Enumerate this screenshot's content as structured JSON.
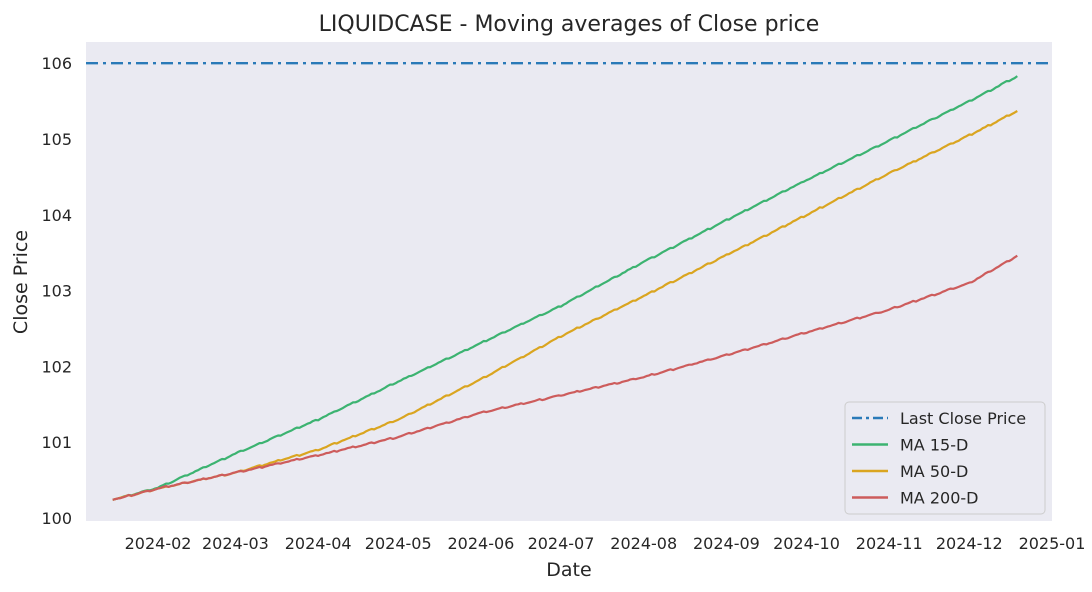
{
  "chart_data": {
    "type": "line",
    "title": "LIQUIDCASE - Moving averages of Close price",
    "xlabel": "Date",
    "ylabel": "Close Price",
    "xlim": [
      "2024-01-05",
      "2025-01-01"
    ],
    "ylim": [
      99.96,
      106.28
    ],
    "grid": false,
    "legend_position": "lower-right",
    "x_ticks": [
      "2024-02",
      "2024-03",
      "2024-04",
      "2024-05",
      "2024-06",
      "2024-07",
      "2024-08",
      "2024-09",
      "2024-10",
      "2024-11",
      "2024-12",
      "2025-01"
    ],
    "y_ticks": [
      "100",
      "101",
      "102",
      "103",
      "104",
      "105",
      "106"
    ],
    "series": [
      {
        "name": "Last Close Price",
        "style": "dashdot",
        "color": "#2a7ab8",
        "x": [
          "2024-01-05",
          "2025-01-01"
        ],
        "y": [
          106.0,
          106.0
        ]
      },
      {
        "name": "MA 15-D",
        "style": "solid",
        "color": "#3cb371",
        "x": [
          "2024-01-15",
          "2024-02-01",
          "2024-03-01",
          "2024-04-01",
          "2024-05-01",
          "2024-06-01",
          "2024-07-01",
          "2024-08-01",
          "2024-09-01",
          "2024-10-01",
          "2024-11-01",
          "2024-12-01",
          "2024-12-19"
        ],
        "y": [
          100.24,
          100.4,
          100.85,
          101.3,
          101.8,
          102.31,
          102.8,
          103.38,
          103.93,
          104.46,
          104.98,
          105.5,
          105.83
        ]
      },
      {
        "name": "MA 50-D",
        "style": "solid",
        "color": "#daa520",
        "x": [
          "2024-01-15",
          "2024-02-01",
          "2024-03-01",
          "2024-04-01",
          "2024-05-01",
          "2024-06-01",
          "2024-07-01",
          "2024-08-01",
          "2024-09-01",
          "2024-10-01",
          "2024-11-01",
          "2024-12-01",
          "2024-12-19"
        ],
        "y": [
          100.24,
          100.39,
          100.6,
          100.9,
          101.3,
          101.83,
          102.4,
          102.93,
          103.47,
          104.0,
          104.55,
          105.05,
          105.37
        ]
      },
      {
        "name": "MA 200-D",
        "style": "solid",
        "color": "#cd5c5c",
        "x": [
          "2024-01-15",
          "2024-02-01",
          "2024-03-01",
          "2024-04-01",
          "2024-05-01",
          "2024-06-01",
          "2024-07-01",
          "2024-08-01",
          "2024-09-01",
          "2024-10-01",
          "2024-11-01",
          "2024-12-01",
          "2024-12-19"
        ],
        "y": [
          100.24,
          100.39,
          100.6,
          100.83,
          101.07,
          101.39,
          101.62,
          101.86,
          102.15,
          102.45,
          102.75,
          103.1,
          103.46
        ]
      }
    ]
  }
}
